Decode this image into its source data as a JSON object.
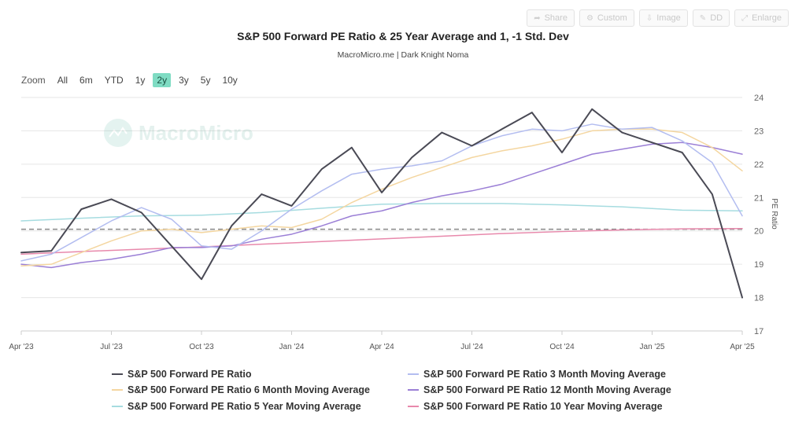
{
  "toolbar": {
    "buttons": [
      {
        "label": "Share",
        "icon": "share-icon"
      },
      {
        "label": "Custom",
        "icon": "gear-icon"
      },
      {
        "label": "Image",
        "icon": "download-icon"
      },
      {
        "label": "DD",
        "icon": "pen-icon"
      },
      {
        "label": "Enlarge",
        "icon": "expand-icon"
      }
    ]
  },
  "zoom": {
    "label": "Zoom",
    "options": [
      "All",
      "6m",
      "YTD",
      "1y",
      "2y",
      "3y",
      "5y",
      "10y"
    ],
    "active": "2y"
  },
  "watermark": "MacroMicro",
  "chart_data": {
    "type": "line",
    "title": "S&P 500 Forward PE Ratio & 25 Year Average and 1, -1 Std. Dev",
    "subtitle": "MacroMicro.me | Dark Knight Noma",
    "ylabel": "PE Ratio",
    "ylim": [
      17,
      24
    ],
    "yticks": [
      17,
      18,
      19,
      20,
      21,
      22,
      23,
      24
    ],
    "xlim": [
      0,
      24
    ],
    "xticks": [
      {
        "x": 0,
        "label": "Apr '23"
      },
      {
        "x": 3,
        "label": "Jul '23"
      },
      {
        "x": 6,
        "label": "Oct '23"
      },
      {
        "x": 9,
        "label": "Jan '24"
      },
      {
        "x": 12,
        "label": "Apr '24"
      },
      {
        "x": 15,
        "label": "Jul '24"
      },
      {
        "x": 18,
        "label": "Oct '24"
      },
      {
        "x": 21,
        "label": "Jan '25"
      },
      {
        "x": 24,
        "label": "Apr '25"
      }
    ],
    "reference_line": {
      "value": 20.05,
      "style": "dashed",
      "color": "#888888"
    },
    "grid": true,
    "legend_position": "bottom",
    "series": [
      {
        "name": "S&P 500 Forward PE Ratio",
        "color": "#4a4a55",
        "width": 2,
        "x": [
          0,
          1,
          2,
          3,
          4,
          5,
          6,
          7,
          8,
          9,
          10,
          11,
          12,
          13,
          14,
          15,
          16,
          17,
          18,
          19,
          20,
          21,
          22,
          23,
          24
        ],
        "values": [
          19.35,
          19.4,
          20.65,
          20.95,
          20.55,
          19.55,
          18.55,
          20.15,
          21.1,
          20.75,
          21.85,
          22.5,
          21.15,
          22.2,
          22.95,
          22.55,
          23.05,
          23.55,
          22.35,
          23.65,
          22.95,
          22.65,
          22.35,
          21.1,
          18.0
        ]
      },
      {
        "name": "S&P 500 Forward PE Ratio 3 Month Moving Average",
        "color": "#b3bdf0",
        "width": 1.5,
        "x": [
          0,
          1,
          2,
          3,
          4,
          5,
          6,
          7,
          8,
          9,
          10,
          11,
          12,
          13,
          14,
          15,
          16,
          17,
          18,
          19,
          20,
          21,
          22,
          23,
          24
        ],
        "values": [
          19.1,
          19.3,
          19.8,
          20.3,
          20.7,
          20.35,
          19.55,
          19.45,
          20.0,
          20.65,
          21.2,
          21.7,
          21.85,
          21.95,
          22.1,
          22.55,
          22.85,
          23.05,
          23.0,
          23.2,
          23.05,
          23.1,
          22.7,
          22.05,
          20.45
        ]
      },
      {
        "name": "S&P 500 Forward PE Ratio 6 Month Moving Average",
        "color": "#f4d6a0",
        "width": 1.5,
        "x": [
          0,
          1,
          2,
          3,
          4,
          5,
          6,
          7,
          8,
          9,
          10,
          11,
          12,
          13,
          14,
          15,
          16,
          17,
          18,
          19,
          20,
          21,
          22,
          23,
          24
        ],
        "values": [
          18.95,
          19.0,
          19.35,
          19.7,
          20.0,
          20.05,
          19.95,
          20.05,
          20.15,
          20.1,
          20.35,
          20.85,
          21.25,
          21.6,
          21.9,
          22.2,
          22.4,
          22.55,
          22.75,
          23.0,
          23.05,
          23.05,
          22.95,
          22.5,
          21.8
        ]
      },
      {
        "name": "S&P 500 Forward PE Ratio 12 Month Moving Average",
        "color": "#9b7fd6",
        "width": 1.5,
        "x": [
          0,
          1,
          2,
          3,
          4,
          5,
          6,
          7,
          8,
          9,
          10,
          11,
          12,
          13,
          14,
          15,
          16,
          17,
          18,
          19,
          20,
          21,
          22,
          23,
          24
        ],
        "values": [
          19.0,
          18.9,
          19.05,
          19.15,
          19.3,
          19.5,
          19.5,
          19.55,
          19.75,
          19.9,
          20.15,
          20.45,
          20.6,
          20.85,
          21.05,
          21.2,
          21.4,
          21.7,
          22.0,
          22.3,
          22.45,
          22.6,
          22.65,
          22.5,
          22.3
        ]
      },
      {
        "name": "S&P 500 Forward PE Ratio 5 Year Moving Average",
        "color": "#a6dce0",
        "width": 1.5,
        "x": [
          0,
          2,
          4,
          6,
          8,
          10,
          12,
          14,
          16,
          18,
          20,
          22,
          24
        ],
        "values": [
          20.3,
          20.38,
          20.45,
          20.47,
          20.55,
          20.68,
          20.8,
          20.82,
          20.82,
          20.78,
          20.72,
          20.62,
          20.6
        ]
      },
      {
        "name": "S&P 500 Forward PE Ratio 10 Year Moving Average",
        "color": "#e889ac",
        "width": 1.5,
        "x": [
          0,
          2,
          4,
          6,
          8,
          10,
          12,
          14,
          16,
          18,
          20,
          22,
          24
        ],
        "values": [
          19.3,
          19.38,
          19.45,
          19.52,
          19.6,
          19.68,
          19.76,
          19.84,
          19.92,
          19.98,
          20.03,
          20.06,
          20.07
        ]
      }
    ]
  }
}
